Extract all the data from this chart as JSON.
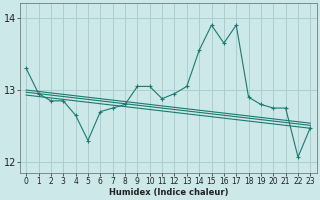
{
  "xlabel": "Humidex (Indice chaleur)",
  "ylabel": "",
  "background_color": "#cce8e8",
  "grid_color": "#aacfcf",
  "line_color": "#1a7a6e",
  "x_values": [
    0,
    1,
    2,
    3,
    4,
    5,
    6,
    7,
    8,
    9,
    10,
    11,
    12,
    13,
    14,
    15,
    16,
    17,
    18,
    19,
    20,
    21,
    22,
    23
  ],
  "y_main": [
    13.3,
    12.95,
    12.85,
    12.85,
    12.65,
    12.3,
    12.7,
    12.75,
    12.8,
    13.05,
    13.05,
    12.88,
    12.95,
    13.05,
    13.55,
    13.9,
    13.65,
    13.9,
    12.9,
    12.8,
    12.75,
    12.75,
    12.07,
    12.48
  ],
  "y_trend1": [
    12.93,
    12.91,
    12.89,
    12.87,
    12.85,
    12.83,
    12.81,
    12.79,
    12.77,
    12.75,
    12.73,
    12.71,
    12.69,
    12.67,
    12.65,
    12.63,
    12.61,
    12.59,
    12.57,
    12.55,
    12.53,
    12.51,
    12.49,
    12.47
  ],
  "y_trend2": [
    12.97,
    12.95,
    12.93,
    12.91,
    12.89,
    12.87,
    12.85,
    12.83,
    12.81,
    12.79,
    12.77,
    12.75,
    12.73,
    12.71,
    12.69,
    12.67,
    12.65,
    12.63,
    12.61,
    12.59,
    12.57,
    12.55,
    12.53,
    12.51
  ],
  "y_trend3": [
    13.0,
    12.98,
    12.96,
    12.94,
    12.92,
    12.9,
    12.88,
    12.86,
    12.84,
    12.82,
    12.8,
    12.78,
    12.76,
    12.74,
    12.72,
    12.7,
    12.68,
    12.66,
    12.64,
    12.62,
    12.6,
    12.58,
    12.56,
    12.54
  ],
  "ylim": [
    11.85,
    14.2
  ],
  "yticks": [
    12,
    13,
    14
  ],
  "xlim": [
    -0.5,
    23.5
  ],
  "xticks": [
    0,
    1,
    2,
    3,
    4,
    5,
    6,
    7,
    8,
    9,
    10,
    11,
    12,
    13,
    14,
    15,
    16,
    17,
    18,
    19,
    20,
    21,
    22,
    23
  ]
}
